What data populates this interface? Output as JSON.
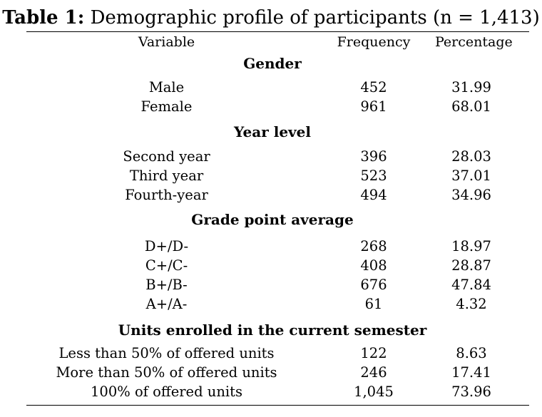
{
  "table": {
    "caption_label": "Table 1:",
    "caption_text": " Demographic profile of participants (n = 1,413)",
    "headers": {
      "variable": "Variable",
      "frequency": "Frequency",
      "percentage": "Percentage"
    },
    "sections": [
      {
        "title": "Gender",
        "rows": [
          {
            "variable": "Male",
            "frequency": "452",
            "percentage": "31.99"
          },
          {
            "variable": "Female",
            "frequency": "961",
            "percentage": "68.01"
          }
        ]
      },
      {
        "title": "Year level",
        "rows": [
          {
            "variable": "Second year",
            "frequency": "396",
            "percentage": "28.03"
          },
          {
            "variable": "Third year",
            "frequency": "523",
            "percentage": "37.01"
          },
          {
            "variable": "Fourth-year",
            "frequency": "494",
            "percentage": "34.96"
          }
        ]
      },
      {
        "title": "Grade point average",
        "rows": [
          {
            "variable": "D+/D-",
            "frequency": "268",
            "percentage": "18.97"
          },
          {
            "variable": "C+/C-",
            "frequency": "408",
            "percentage": "28.87"
          },
          {
            "variable": "B+/B-",
            "frequency": "676",
            "percentage": "47.84"
          },
          {
            "variable": "A+/A-",
            "frequency": "61",
            "percentage": "4.32"
          }
        ]
      },
      {
        "title": "Units enrolled in the current semester",
        "rows": [
          {
            "variable": "Less than 50% of offered units",
            "frequency": "122",
            "percentage": "8.63"
          },
          {
            "variable": "More than 50% of offered units",
            "frequency": "246",
            "percentage": "17.41"
          },
          {
            "variable": "100% of offered units",
            "frequency": "1,045",
            "percentage": "73.96"
          }
        ]
      }
    ]
  }
}
